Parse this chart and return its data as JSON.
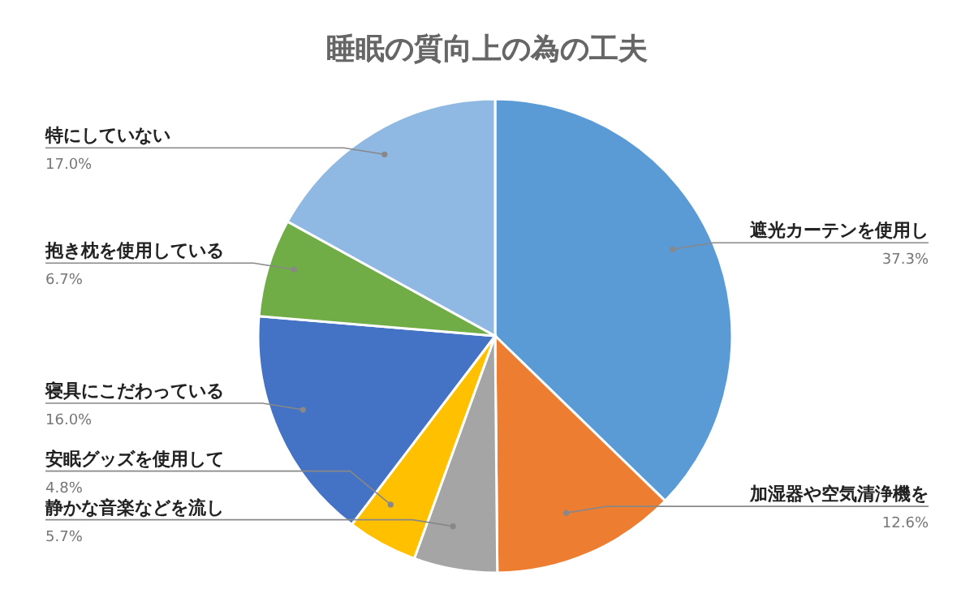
{
  "chart_data": {
    "type": "pie",
    "title": "睡眠の質向上の為の工夫",
    "categories": [
      "遮光カーテンを使用し",
      "加湿器や空気清浄機を",
      "静かな音楽などを流し",
      "安眠グッズを使用して",
      "寝具にこだわっている",
      "抱き枕を使用している",
      "特にしていない"
    ],
    "values": [
      37.3,
      12.6,
      5.7,
      4.8,
      16.0,
      6.7,
      17.0
    ],
    "value_labels": [
      "37.3%",
      "12.6%",
      "5.7%",
      "4.8%",
      "16.0%",
      "6.7%",
      "17.0%"
    ],
    "colors": [
      "#5b9bd5",
      "#ed7d31",
      "#a5a5a5",
      "#ffc000",
      "#4472c4",
      "#70ad47",
      "#8fb9e3"
    ]
  }
}
